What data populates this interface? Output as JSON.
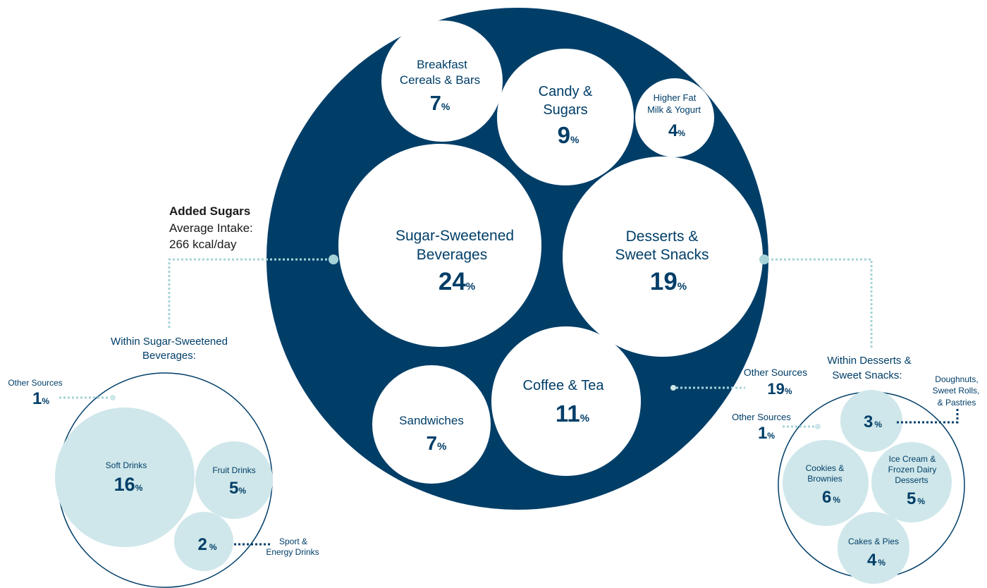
{
  "colors": {
    "navy": "#003e68",
    "light_blue": "#cfe7ea",
    "white": "#ffffff",
    "connector": "#a6d3d8"
  },
  "intake": {
    "title": "Added Sugars",
    "line1": "Average Intake:",
    "line2": "266 kcal/day"
  },
  "main": {
    "breakfast": {
      "label1": "Breakfast",
      "label2": "Cereals & Bars",
      "value": "7",
      "pct": "%"
    },
    "candy": {
      "label1": "Candy &",
      "label2": "Sugars",
      "value": "9",
      "pct": "%"
    },
    "milk": {
      "label1": "Higher Fat",
      "label2": "Milk & Yogurt",
      "value": "4",
      "pct": "%"
    },
    "ssb": {
      "label1": "Sugar-Sweetened",
      "label2": "Beverages",
      "value": "24",
      "pct": "%"
    },
    "desserts": {
      "label1": "Desserts &",
      "label2": "Sweet Snacks",
      "value": "19",
      "pct": "%"
    },
    "coffee": {
      "label1": "Coffee & Tea",
      "value": "11",
      "pct": "%"
    },
    "sandwiches": {
      "label1": "Sandwiches",
      "value": "7",
      "pct": "%"
    },
    "other": {
      "label1": "Other Sources",
      "value": "19",
      "pct": "%"
    }
  },
  "ssb_breakdown": {
    "heading1": "Within Sugar-Sweetened",
    "heading2": "Beverages:",
    "other": {
      "label": "Other Sources",
      "value": "1",
      "pct": "%"
    },
    "soft": {
      "label": "Soft Drinks",
      "value": "16",
      "pct": "%"
    },
    "fruit": {
      "label": "Fruit Drinks",
      "value": "5",
      "pct": "%"
    },
    "sport": {
      "label1": "Sport &",
      "label2": "Energy Drinks",
      "value": "2",
      "pct": "%"
    }
  },
  "desserts_breakdown": {
    "heading1": "Within Desserts &",
    "heading2": "Sweet Snacks:",
    "other": {
      "label": "Other Sources",
      "value": "1",
      "pct": "%"
    },
    "doughnuts": {
      "label1": "Doughnuts,",
      "label2": "Sweet Rolls,",
      "label3": "& Pastries",
      "value": "3",
      "pct": "%"
    },
    "cookies": {
      "label1": "Cookies &",
      "label2": "Brownies",
      "value": "6",
      "pct": "%"
    },
    "icecream": {
      "label1": "Ice Cream &",
      "label2": "Frozen Dairy",
      "label3": "Desserts",
      "value": "5",
      "pct": "%"
    },
    "cakes": {
      "label": "Cakes & Pies",
      "value": "4",
      "pct": "%"
    }
  }
}
